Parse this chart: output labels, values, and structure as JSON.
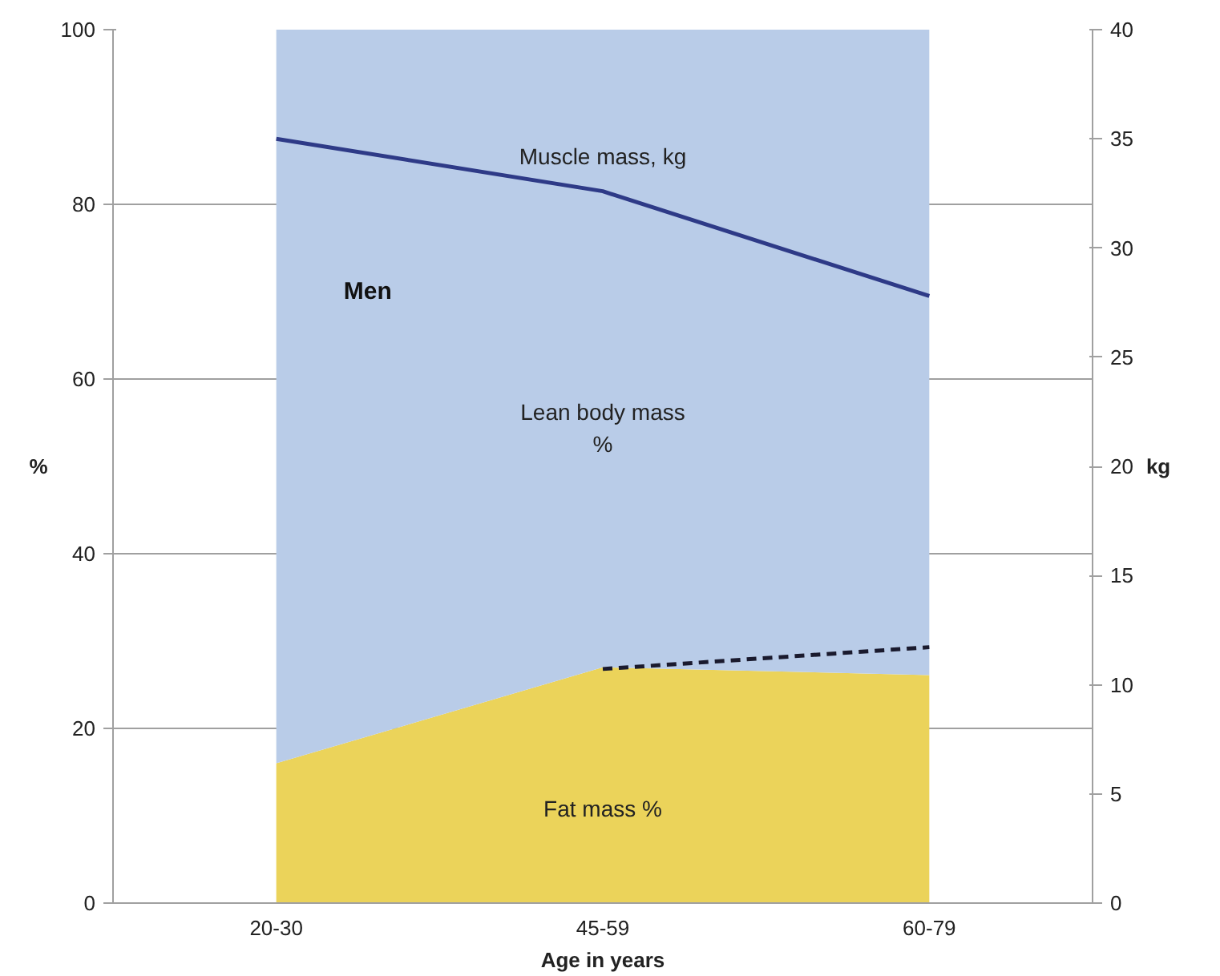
{
  "chart_data": {
    "type": "area",
    "stacked": true,
    "xlabel": "Age in years",
    "ylabel": "%",
    "y2label": "kg",
    "categories": [
      "20-30",
      "45-59",
      "60-79"
    ],
    "series": [
      {
        "name": "Fat mass %",
        "color": "#ebd35a",
        "values": [
          16,
          27,
          26.1
        ]
      },
      {
        "name": "Lean body mass %",
        "color": "#b9cce8",
        "values": [
          84,
          73,
          73.9
        ]
      },
      {
        "name": "Muscle mass, kg",
        "type": "line",
        "axis": "y2",
        "color": "#2e3a87",
        "values": [
          35,
          32.6,
          27.8
        ]
      },
      {
        "type": "line",
        "line_style": "dashed",
        "color": "#1a1a2e",
        "values": [
          null,
          26.8,
          29.3
        ]
      }
    ],
    "annotations": [
      "Men"
    ],
    "ylim": [
      0,
      100
    ],
    "yticks": [
      0,
      20,
      40,
      60,
      80,
      100
    ],
    "y2lim": [
      0,
      40
    ],
    "y2ticks": [
      0,
      5,
      10,
      15,
      20,
      25,
      30,
      35,
      40
    ],
    "grid": "y"
  }
}
